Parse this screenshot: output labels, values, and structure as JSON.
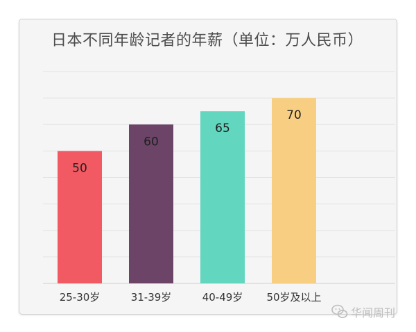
{
  "title": "日本不同年龄记者的年薪（单位：万人民币）",
  "watermark": "华闻周刊",
  "chart_data": {
    "type": "bar",
    "title": "日本不同年龄记者的年薪（单位：万人民币）",
    "categories": [
      "25-30岁",
      "31-39岁",
      "40-49岁",
      "50岁及以上"
    ],
    "values": [
      50,
      60,
      65,
      70
    ],
    "colors": [
      "#f25a63",
      "#6b4467",
      "#62d6be",
      "#f8cf82"
    ],
    "ylim": [
      0,
      80
    ],
    "grid": true,
    "legend": "none",
    "xlabel": "",
    "ylabel": ""
  }
}
